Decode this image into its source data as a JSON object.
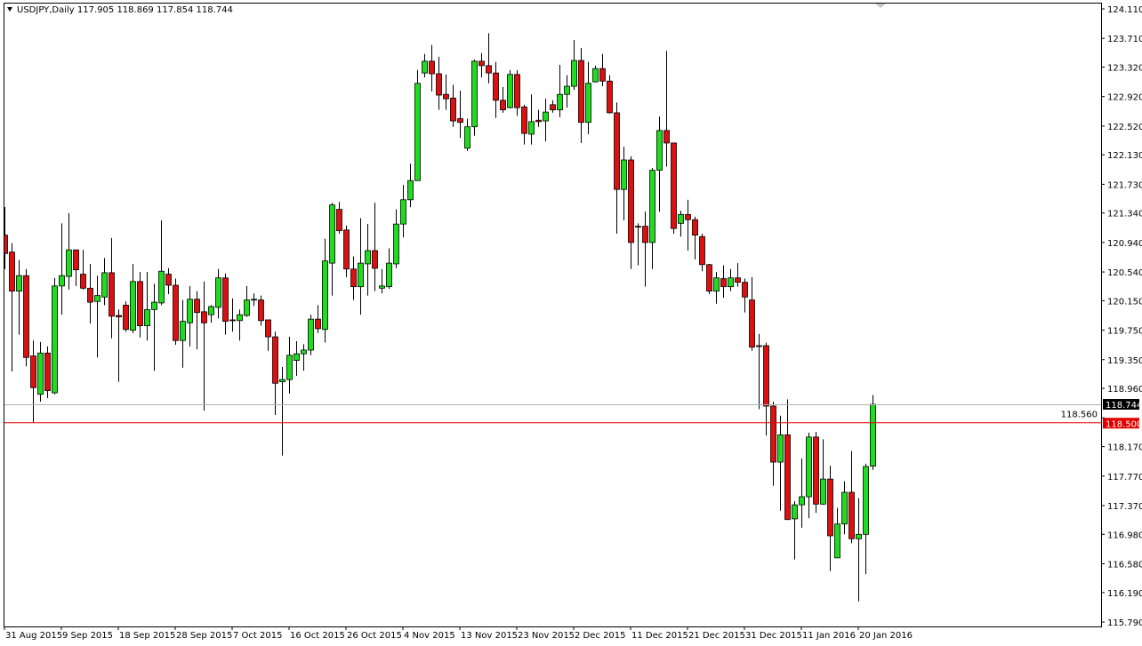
{
  "header": {
    "symbol_label": "USDJPY,Daily",
    "ohlc_readout": "117.905 118.869 117.854 118.744"
  },
  "chart_data": {
    "type": "candlestick",
    "title": "USDJPY,Daily",
    "ylim": [
      115.79,
      124.11
    ],
    "y_ticks": [
      "124.110",
      "123.710",
      "123.320",
      "122.920",
      "122.520",
      "122.130",
      "121.730",
      "121.340",
      "120.940",
      "120.540",
      "120.150",
      "119.750",
      "119.350",
      "118.960",
      "118.560",
      "118.170",
      "117.770",
      "117.370",
      "116.980",
      "116.580",
      "116.190",
      "115.790"
    ],
    "x_labels": [
      {
        "label": "31 Aug 2015",
        "index": 0
      },
      {
        "label": "9 Sep 2015",
        "index": 8
      },
      {
        "label": "18 Sep 2015",
        "index": 16
      },
      {
        "label": "28 Sep 2015",
        "index": 24
      },
      {
        "label": "7 Oct 2015",
        "index": 32
      },
      {
        "label": "16 Oct 2015",
        "index": 40
      },
      {
        "label": "26 Oct 2015",
        "index": 48
      },
      {
        "label": "4 Nov 2015",
        "index": 56
      },
      {
        "label": "13 Nov 2015",
        "index": 64
      },
      {
        "label": "23 Nov 2015",
        "index": 72
      },
      {
        "label": "2 Dec 2015",
        "index": 80
      },
      {
        "label": "11 Dec 2015",
        "index": 88
      },
      {
        "label": "21 Dec 2015",
        "index": 96
      },
      {
        "label": "31 Dec 2015",
        "index": 104
      },
      {
        "label": "11 Jan 2016",
        "index": 112
      },
      {
        "label": "20 Jan 2016",
        "index": 120
      }
    ],
    "bid_line": {
      "value": 118.744,
      "label": "118.744",
      "color": "#000000"
    },
    "horizontal_line": {
      "value": 118.5,
      "label": "118.500",
      "color": "#e00000"
    },
    "colors": {
      "bull": "#1fdc1f",
      "bear": "#dc1010",
      "outline": "#000000",
      "wick": "#000000"
    },
    "grid": false,
    "ohlc": [
      [
        121.04,
        121.42,
        120.58,
        120.79
      ],
      [
        120.81,
        120.93,
        119.19,
        120.28
      ],
      [
        120.28,
        120.7,
        119.69,
        120.49
      ],
      [
        120.49,
        120.58,
        119.26,
        119.38
      ],
      [
        119.4,
        119.61,
        118.5,
        118.97
      ],
      [
        118.88,
        119.59,
        118.78,
        119.44
      ],
      [
        119.44,
        119.53,
        118.83,
        118.93
      ],
      [
        118.9,
        120.46,
        118.88,
        120.35
      ],
      [
        120.35,
        121.2,
        119.96,
        120.49
      ],
      [
        120.48,
        121.34,
        120.3,
        120.84
      ],
      [
        120.84,
        120.84,
        120.35,
        120.57
      ],
      [
        120.51,
        120.84,
        120.3,
        120.32
      ],
      [
        120.32,
        120.65,
        119.84,
        120.13
      ],
      [
        120.14,
        120.49,
        119.38,
        120.22
      ],
      [
        120.2,
        120.73,
        120.09,
        120.53
      ],
      [
        120.53,
        121.0,
        119.64,
        119.94
      ],
      [
        119.95,
        120.03,
        119.05,
        119.93
      ],
      [
        120.09,
        120.14,
        119.73,
        119.76
      ],
      [
        119.75,
        120.65,
        119.71,
        120.41
      ],
      [
        120.41,
        120.54,
        119.65,
        119.81
      ],
      [
        119.81,
        120.54,
        119.61,
        120.03
      ],
      [
        120.03,
        120.38,
        119.2,
        120.13
      ],
      [
        120.12,
        121.24,
        120.09,
        120.55
      ],
      [
        120.51,
        120.59,
        120.24,
        120.36
      ],
      [
        120.36,
        120.45,
        119.55,
        119.61
      ],
      [
        119.61,
        120.16,
        119.24,
        119.87
      ],
      [
        119.85,
        120.35,
        119.53,
        120.17
      ],
      [
        120.17,
        120.28,
        119.49,
        119.99
      ],
      [
        120.0,
        120.41,
        118.66,
        119.85
      ],
      [
        119.96,
        120.09,
        119.85,
        120.07
      ],
      [
        120.06,
        120.58,
        119.91,
        120.46
      ],
      [
        120.46,
        120.52,
        119.69,
        119.87
      ],
      [
        119.89,
        120.18,
        119.73,
        119.88
      ],
      [
        119.88,
        120.03,
        119.61,
        119.96
      ],
      [
        119.95,
        120.35,
        119.93,
        120.16
      ],
      [
        120.16,
        120.25,
        120.08,
        120.17
      ],
      [
        120.16,
        120.22,
        119.81,
        119.88
      ],
      [
        119.89,
        119.89,
        119.47,
        119.66
      ],
      [
        119.66,
        119.73,
        118.6,
        119.03
      ],
      [
        119.05,
        119.25,
        118.05,
        119.08
      ],
      [
        119.08,
        119.66,
        118.89,
        119.41
      ],
      [
        119.34,
        119.6,
        119.13,
        119.43
      ],
      [
        119.43,
        119.56,
        119.2,
        119.48
      ],
      [
        119.48,
        119.96,
        119.41,
        119.9
      ],
      [
        119.9,
        120.09,
        119.71,
        119.77
      ],
      [
        119.76,
        120.99,
        119.58,
        120.69
      ],
      [
        120.66,
        121.48,
        120.22,
        121.45
      ],
      [
        121.39,
        121.49,
        121.06,
        121.1
      ],
      [
        121.11,
        121.17,
        120.47,
        120.58
      ],
      [
        120.58,
        120.75,
        120.16,
        120.34
      ],
      [
        120.34,
        121.27,
        119.96,
        120.66
      ],
      [
        120.65,
        121.19,
        120.22,
        120.83
      ],
      [
        120.83,
        121.48,
        120.28,
        120.59
      ],
      [
        120.32,
        120.58,
        120.25,
        120.35
      ],
      [
        120.34,
        120.86,
        120.31,
        120.66
      ],
      [
        120.65,
        121.39,
        120.59,
        121.19
      ],
      [
        121.19,
        121.72,
        121.01,
        121.52
      ],
      [
        121.52,
        122.01,
        121.42,
        121.78
      ],
      [
        121.78,
        123.28,
        121.78,
        123.1
      ],
      [
        123.24,
        123.5,
        123.18,
        123.4
      ],
      [
        123.4,
        123.62,
        122.99,
        123.23
      ],
      [
        123.23,
        123.46,
        122.74,
        122.94
      ],
      [
        122.95,
        123.22,
        122.74,
        122.89
      ],
      [
        122.9,
        123.08,
        122.51,
        122.59
      ],
      [
        122.62,
        123.0,
        122.36,
        122.57
      ],
      [
        122.22,
        122.62,
        122.18,
        122.51
      ],
      [
        122.51,
        123.42,
        122.39,
        123.4
      ],
      [
        123.4,
        123.51,
        123.18,
        123.34
      ],
      [
        123.34,
        123.78,
        123.1,
        123.24
      ],
      [
        123.24,
        123.39,
        122.63,
        122.87
      ],
      [
        122.87,
        123.05,
        122.7,
        122.74
      ],
      [
        122.77,
        123.28,
        122.76,
        123.22
      ],
      [
        123.22,
        123.28,
        122.66,
        122.77
      ],
      [
        122.78,
        122.81,
        122.27,
        122.42
      ],
      [
        122.41,
        122.95,
        122.27,
        122.58
      ],
      [
        122.6,
        122.74,
        122.51,
        122.58
      ],
      [
        122.59,
        122.89,
        122.31,
        122.71
      ],
      [
        122.81,
        122.87,
        122.7,
        122.74
      ],
      [
        122.74,
        123.35,
        122.64,
        122.95
      ],
      [
        122.95,
        123.21,
        122.77,
        123.06
      ],
      [
        123.06,
        123.69,
        123.01,
        123.41
      ],
      [
        123.41,
        123.58,
        122.29,
        122.57
      ],
      [
        122.57,
        123.39,
        122.41,
        123.1
      ],
      [
        123.12,
        123.34,
        123.11,
        123.3
      ],
      [
        123.3,
        123.5,
        123.06,
        123.13
      ],
      [
        123.13,
        123.21,
        122.69,
        122.7
      ],
      [
        122.7,
        122.84,
        121.06,
        121.66
      ],
      [
        121.66,
        122.24,
        121.24,
        122.06
      ],
      [
        122.06,
        122.11,
        120.58,
        120.94
      ],
      [
        121.16,
        121.2,
        120.63,
        121.15
      ],
      [
        121.16,
        121.36,
        120.34,
        120.94
      ],
      [
        120.94,
        121.95,
        120.58,
        121.92
      ],
      [
        121.92,
        122.65,
        121.36,
        122.46
      ],
      [
        122.46,
        123.54,
        121.97,
        122.29
      ],
      [
        122.29,
        122.29,
        121.06,
        121.13
      ],
      [
        121.2,
        121.37,
        121.02,
        121.32
      ],
      [
        121.32,
        121.52,
        120.83,
        121.25
      ],
      [
        121.25,
        121.29,
        120.71,
        121.04
      ],
      [
        121.02,
        121.06,
        120.55,
        120.64
      ],
      [
        120.64,
        120.65,
        120.24,
        120.28
      ],
      [
        120.28,
        120.54,
        120.11,
        120.46
      ],
      [
        120.45,
        120.63,
        120.19,
        120.34
      ],
      [
        120.34,
        120.58,
        120.28,
        120.46
      ],
      [
        120.46,
        120.66,
        120.34,
        120.4
      ],
      [
        120.4,
        120.45,
        119.99,
        120.2
      ],
      [
        120.16,
        120.47,
        119.47,
        119.52
      ],
      [
        119.54,
        119.7,
        118.68,
        119.54
      ],
      [
        119.54,
        119.58,
        118.32,
        118.72
      ],
      [
        118.72,
        118.78,
        117.64,
        117.96
      ],
      [
        117.96,
        118.59,
        117.3,
        118.33
      ],
      [
        118.33,
        118.81,
        117.18,
        117.18
      ],
      [
        117.19,
        117.43,
        116.64,
        117.38
      ],
      [
        117.38,
        118.01,
        117.07,
        117.49
      ],
      [
        117.49,
        118.36,
        117.2,
        118.3
      ],
      [
        118.3,
        118.37,
        117.27,
        117.39
      ],
      [
        117.39,
        118.27,
        117.38,
        117.73
      ],
      [
        117.73,
        117.91,
        116.48,
        116.96
      ],
      [
        116.66,
        117.34,
        116.66,
        117.12
      ],
      [
        117.12,
        117.7,
        116.98,
        117.55
      ],
      [
        117.55,
        118.11,
        116.86,
        116.92
      ],
      [
        116.92,
        117.47,
        116.07,
        116.98
      ],
      [
        116.98,
        117.94,
        116.44,
        117.9
      ],
      [
        117.905,
        118.869,
        117.854,
        118.744
      ]
    ]
  }
}
